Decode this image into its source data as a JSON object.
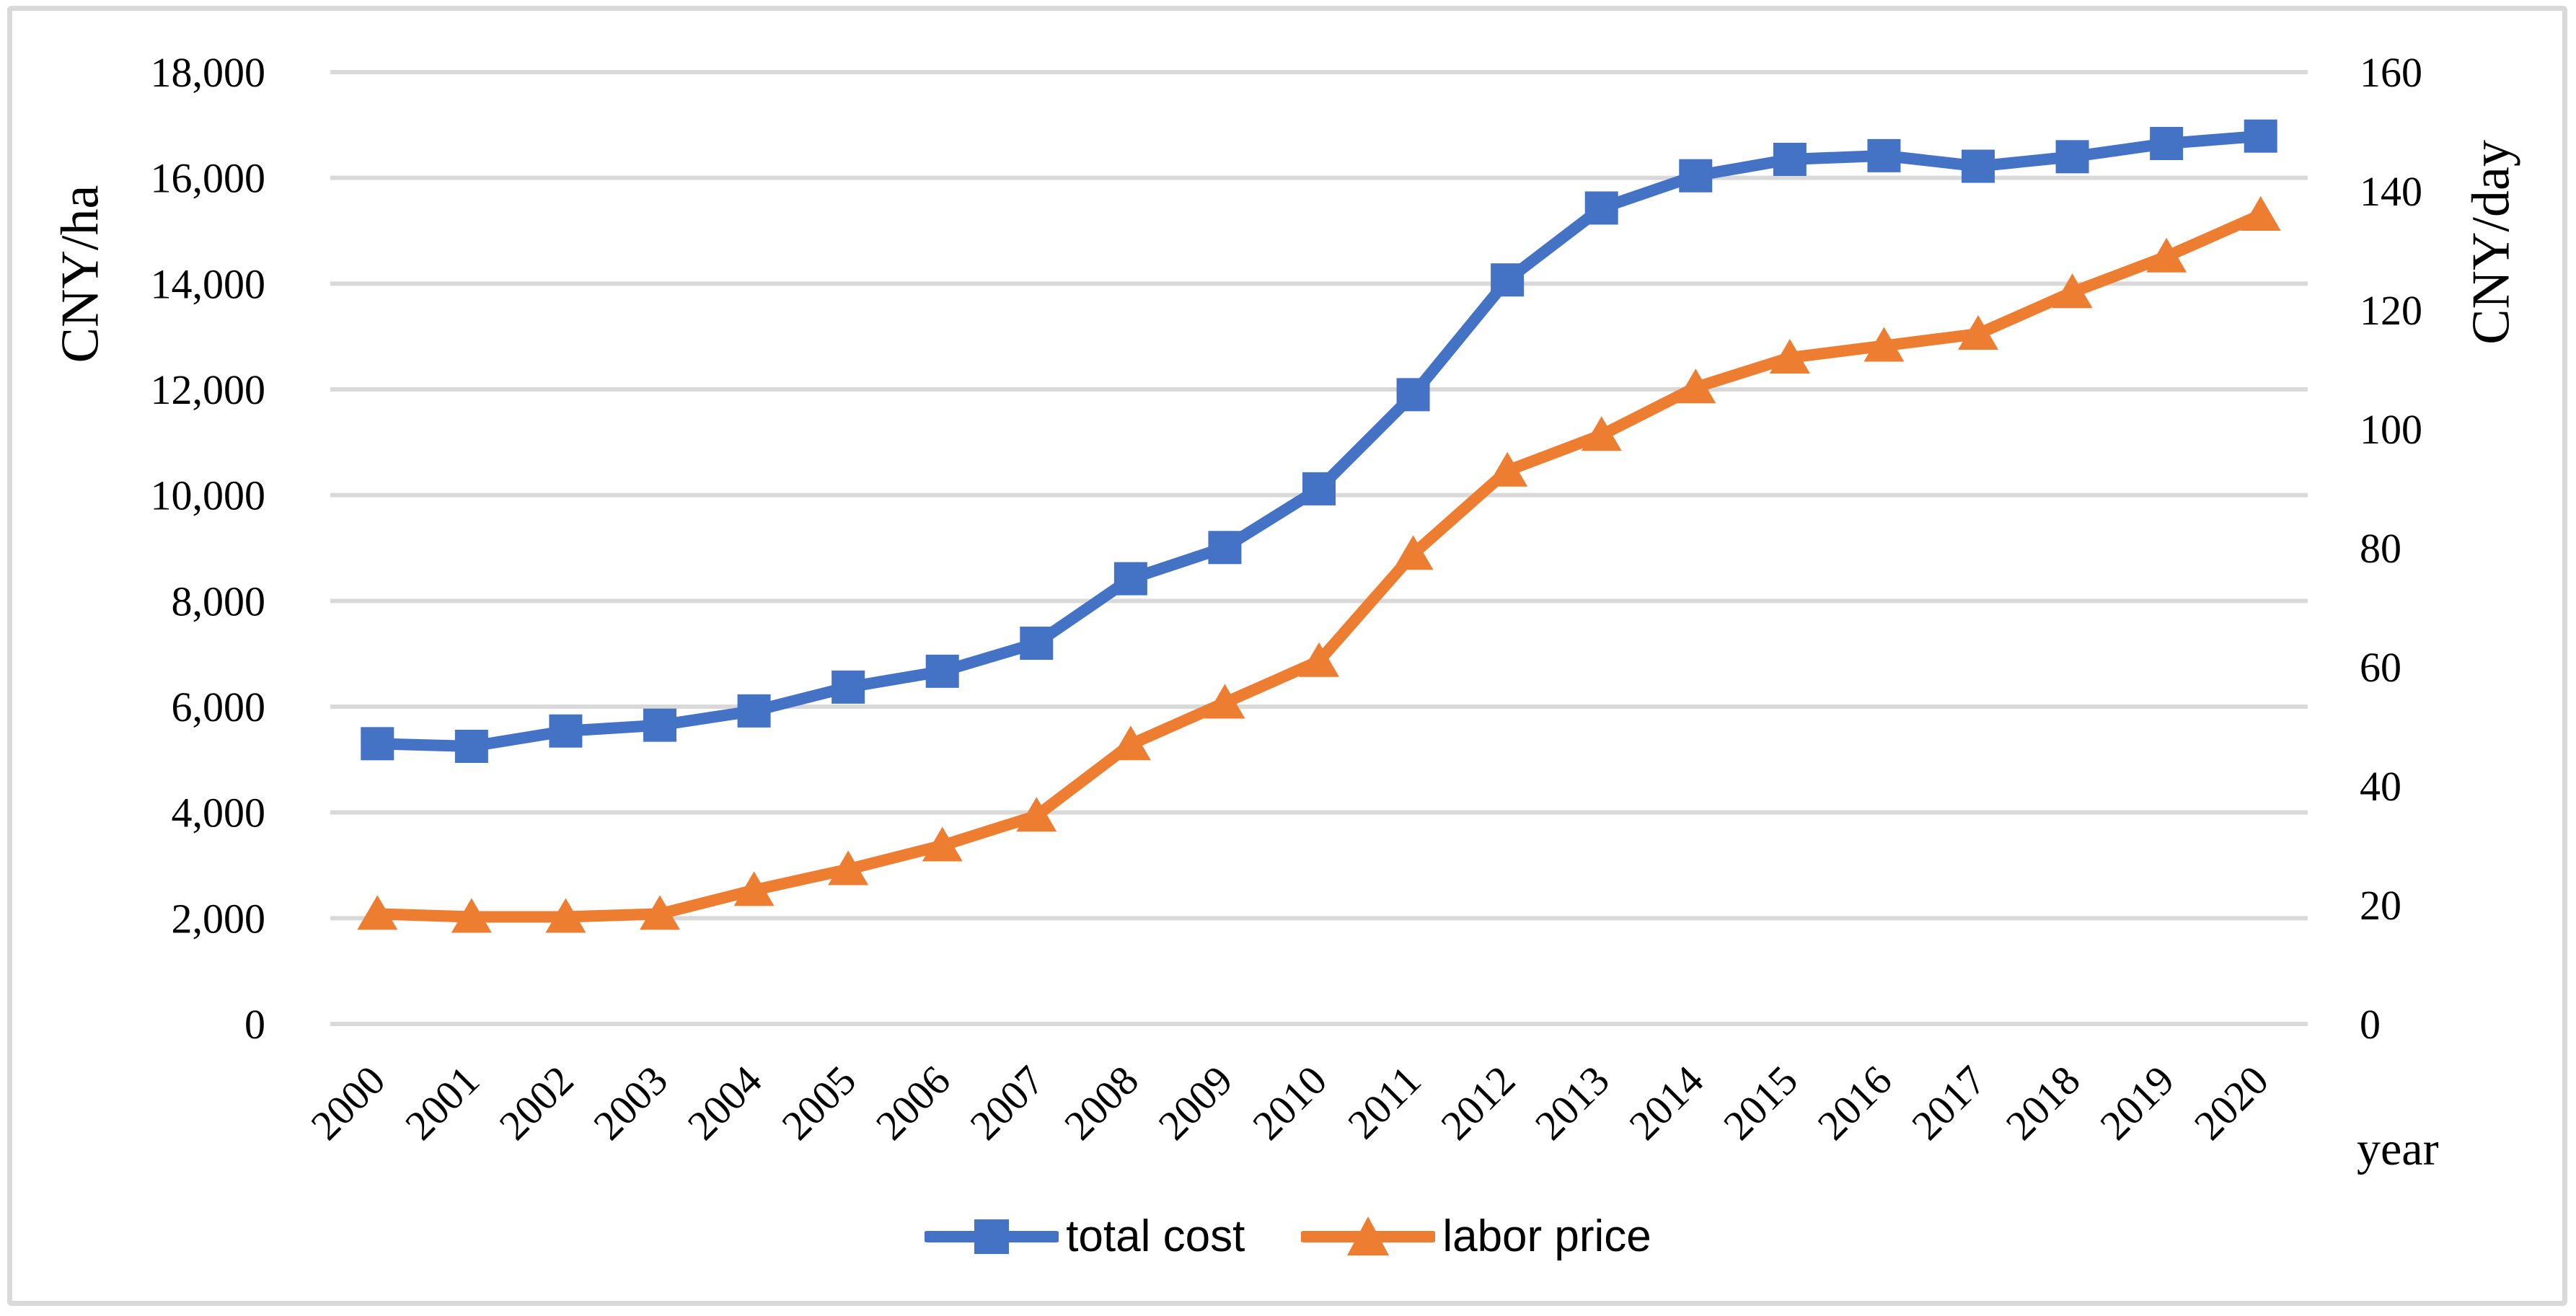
{
  "figure": {
    "background": "#ffffff",
    "frame_color": "#d9d9d9"
  },
  "chart_data": {
    "type": "line",
    "title": "",
    "categories": [
      "2000",
      "2001",
      "2002",
      "2003",
      "2004",
      "2005",
      "2006",
      "2007",
      "2008",
      "2009",
      "2010",
      "2011",
      "2012",
      "2013",
      "2014",
      "2015",
      "2016",
      "2017",
      "2018",
      "2019",
      "2020"
    ],
    "series": [
      {
        "name": "total cost",
        "axis": "left",
        "color": "#4472C4",
        "marker": "square",
        "values": [
          5300,
          5250,
          5540,
          5650,
          5920,
          6370,
          6670,
          7200,
          8420,
          9010,
          10120,
          11900,
          14070,
          15430,
          16040,
          16350,
          16420,
          16220,
          16400,
          16650,
          16790
        ]
      },
      {
        "name": "labor price",
        "axis": "right",
        "color": "#ED7D31",
        "marker": "triangle",
        "values": [
          18.5,
          18,
          18,
          18.5,
          22.5,
          26,
          30,
          35,
          47,
          54,
          61,
          79,
          93,
          99,
          107,
          112,
          114,
          116,
          123,
          129,
          136
        ]
      }
    ],
    "left_axis": {
      "title": "CNY/ha",
      "min": 0,
      "max": 18000,
      "tick_step": 2000,
      "tick_labels": [
        "0",
        "2,000",
        "4,000",
        "6,000",
        "8,000",
        "10,000",
        "12,000",
        "14,000",
        "16,000",
        "18,000"
      ]
    },
    "right_axis": {
      "title": "CNY/day",
      "min": 0,
      "max": 160,
      "tick_step": 20,
      "tick_labels": [
        "0",
        "20",
        "40",
        "60",
        "80",
        "100",
        "120",
        "140",
        "160"
      ]
    },
    "x_axis": {
      "title": "year",
      "tick_labels": [
        "2000",
        "2001",
        "2002",
        "2003",
        "2004",
        "2005",
        "2006",
        "2007",
        "2008",
        "2009",
        "2010",
        "2011",
        "2012",
        "2013",
        "2014",
        "2015",
        "2016",
        "2017",
        "2018",
        "2019",
        "2020"
      ]
    },
    "grid": true,
    "grid_color": "#d9d9d9",
    "text_color": "#000000",
    "legend_position": "bottom-center"
  }
}
